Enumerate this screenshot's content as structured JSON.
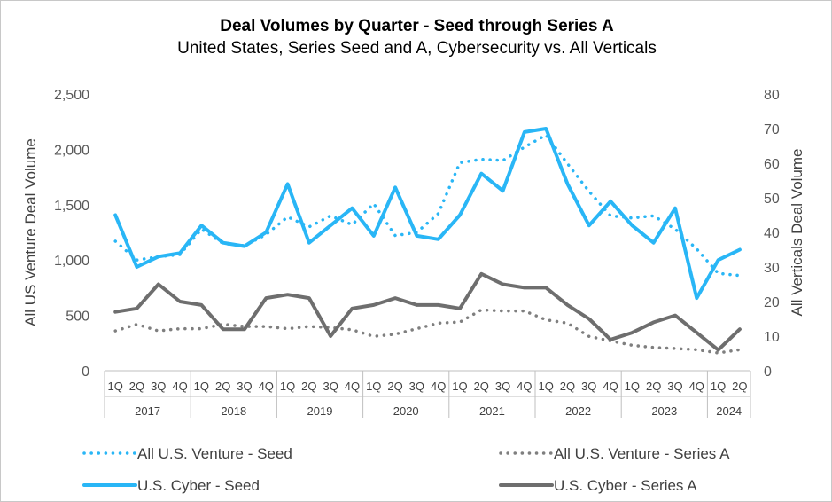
{
  "chart_data": {
    "type": "line",
    "title": "Deal Volumes by Quarter - Seed through Series A",
    "subtitle": "United States, Series Seed and A, Cybersecurity vs. All Verticals",
    "ylabel_left": "All US Venture Deal Volume",
    "ylabel_right": "All Verticals Deal Volume",
    "ylim_left": [
      0,
      2500
    ],
    "ylim_right": [
      0,
      80
    ],
    "yticks_left": [
      "0",
      "500",
      "1,000",
      "1,500",
      "2,000",
      "2,500"
    ],
    "yticks_right": [
      "0",
      "10",
      "20",
      "30",
      "40",
      "50",
      "60",
      "70",
      "80"
    ],
    "quarters": [
      "1Q",
      "2Q",
      "3Q",
      "4Q",
      "1Q",
      "2Q",
      "3Q",
      "4Q",
      "1Q",
      "2Q",
      "3Q",
      "4Q",
      "1Q",
      "2Q",
      "3Q",
      "4Q",
      "1Q",
      "2Q",
      "3Q",
      "4Q",
      "1Q",
      "2Q",
      "3Q",
      "4Q",
      "1Q",
      "2Q",
      "3Q",
      "4Q",
      "1Q",
      "2Q"
    ],
    "years": [
      {
        "label": "2017",
        "quarters": 4
      },
      {
        "label": "2018",
        "quarters": 4
      },
      {
        "label": "2019",
        "quarters": 4
      },
      {
        "label": "2020",
        "quarters": 4
      },
      {
        "label": "2021",
        "quarters": 4
      },
      {
        "label": "2022",
        "quarters": 4
      },
      {
        "label": "2023",
        "quarters": 4
      },
      {
        "label": "2024",
        "quarters": 2
      }
    ],
    "grid": false,
    "legend_position": "bottom",
    "series": [
      {
        "name": "All U.S. Venture - Seed",
        "axis": "left",
        "style": "dotted",
        "color": "#29b6f6",
        "values": [
          1170,
          1000,
          1030,
          1050,
          1280,
          1150,
          1130,
          1230,
          1390,
          1300,
          1400,
          1320,
          1510,
          1220,
          1250,
          1420,
          1880,
          1910,
          1900,
          2020,
          2130,
          1870,
          1620,
          1400,
          1380,
          1400,
          1280,
          1100,
          880,
          860
        ]
      },
      {
        "name": "All U.S. Venture - Series A",
        "axis": "left",
        "style": "dotted",
        "color": "#7f7f7f",
        "values": [
          360,
          420,
          360,
          380,
          380,
          420,
          400,
          400,
          380,
          400,
          390,
          370,
          310,
          330,
          380,
          430,
          440,
          550,
          540,
          540,
          460,
          430,
          310,
          270,
          230,
          210,
          200,
          190,
          160,
          190
        ]
      },
      {
        "name": "U.S. Cyber - Seed",
        "axis": "right",
        "style": "solid",
        "color": "#29b6f6",
        "values": [
          45,
          30,
          33,
          34,
          42,
          37,
          36,
          40,
          54,
          37,
          42,
          47,
          39,
          53,
          39,
          38,
          45,
          57,
          52,
          69,
          70,
          54,
          42,
          49,
          42,
          37,
          47,
          21,
          32,
          35
        ]
      },
      {
        "name": "U.S. Cyber - Series A",
        "axis": "right",
        "style": "solid",
        "color": "#6e6e6e",
        "values": [
          17,
          18,
          25,
          20,
          19,
          12,
          12,
          21,
          22,
          21,
          10,
          18,
          19,
          21,
          19,
          19,
          18,
          28,
          25,
          24,
          24,
          19,
          15,
          9,
          11,
          14,
          16,
          11,
          6,
          12
        ]
      }
    ]
  }
}
